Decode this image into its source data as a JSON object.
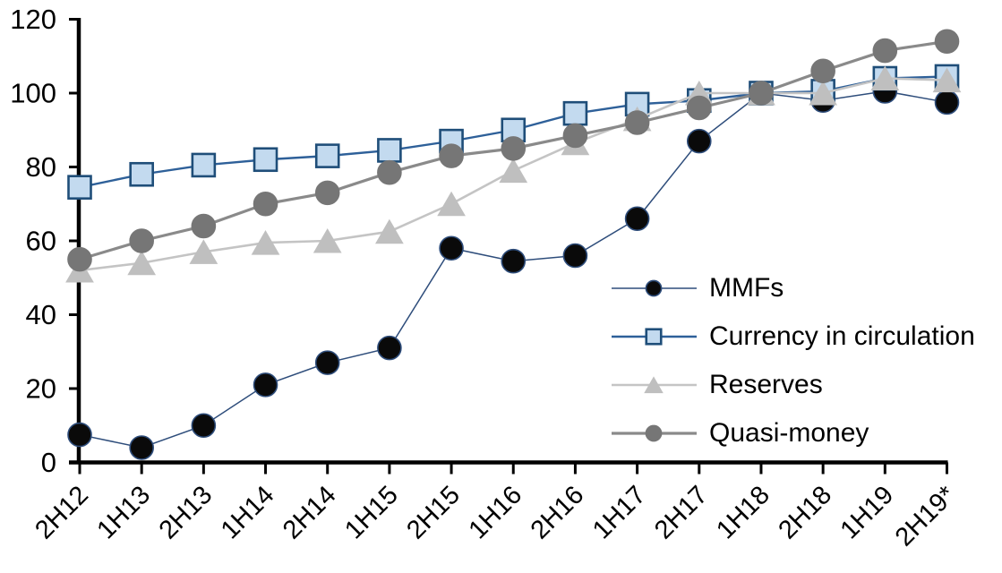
{
  "chart_data": {
    "type": "line",
    "title": "",
    "xlabel": "",
    "ylabel": "",
    "grid": false,
    "legend_position": "inside-right",
    "ylim": [
      0,
      120
    ],
    "y_ticks": [
      0,
      20,
      40,
      60,
      80,
      100,
      120
    ],
    "categories": [
      "2H12",
      "1H13",
      "2H13",
      "1H14",
      "2H14",
      "1H15",
      "2H15",
      "1H16",
      "2H16",
      "1H17",
      "2H17",
      "1H18",
      "2H18",
      "1H19",
      "2H19*"
    ],
    "series": [
      {
        "name": "MMFs",
        "marker": "circle",
        "marker_fill": "#0a0a0a",
        "marker_stroke": "#2e4d7b",
        "line_color": "#2e4d7b",
        "line_width": 1.5,
        "values": [
          7.5,
          4,
          10,
          21,
          27,
          31,
          58,
          54.5,
          56,
          66,
          87,
          100,
          98,
          100.5,
          97.5
        ]
      },
      {
        "name": "Currency in circulation",
        "marker": "square",
        "marker_fill": "#c3daef",
        "marker_stroke": "#1f4e79",
        "line_color": "#2e6099",
        "line_width": 2.4,
        "values": [
          74.5,
          78,
          80.5,
          82,
          83,
          84.5,
          87,
          90,
          94.5,
          97,
          98,
          100,
          100.5,
          104,
          104.5
        ]
      },
      {
        "name": "Reserves",
        "marker": "triangle",
        "marker_fill": "#bfbfbf",
        "marker_stroke": "#bfbfbf",
        "line_color": "#c4c4c4",
        "line_width": 2.6,
        "values": [
          52,
          54,
          57,
          59.5,
          60,
          62.5,
          70,
          79,
          86.5,
          93,
          100,
          100,
          100,
          104,
          103.5
        ]
      },
      {
        "name": "Quasi-money",
        "marker": "circle",
        "marker_fill": "#767676",
        "marker_stroke": "#767676",
        "line_color": "#8a8a8a",
        "line_width": 3.2,
        "values": [
          55,
          60,
          64,
          70,
          73,
          78.5,
          83,
          85,
          88.5,
          92,
          96,
          100,
          106,
          111.5,
          114
        ]
      }
    ]
  }
}
